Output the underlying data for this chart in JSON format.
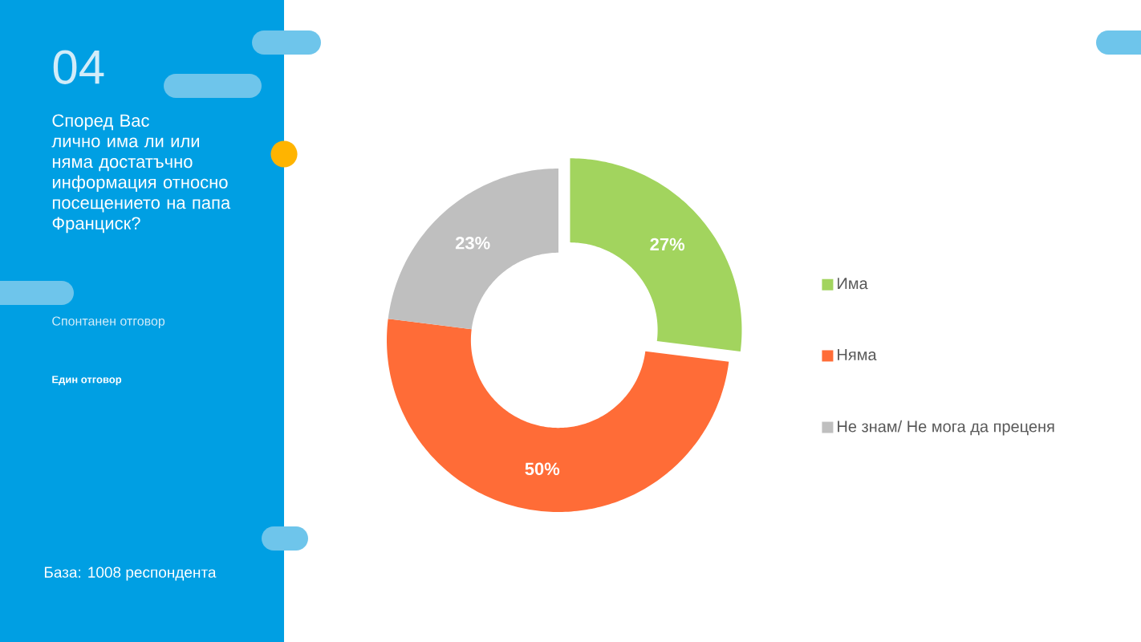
{
  "chart_data": {
    "type": "donut",
    "title": "Според Вас лично има ли или няма достатъчно информация относно посещението на папа Франциск?",
    "subtitle": "Спонтанен отговор",
    "categories": [
      "Има",
      "Няма",
      "Не знам/ Не мога да преценя"
    ],
    "values": [
      27,
      50,
      23
    ],
    "colors": [
      "#a2d45e",
      "#ff6c37",
      "#bfbfbf"
    ],
    "value_labels": [
      "27%",
      "50%",
      "23%"
    ],
    "legend": "right",
    "annotations": [
      "04",
      "Един отговор",
      "База: 1008 респондента"
    ]
  }
}
